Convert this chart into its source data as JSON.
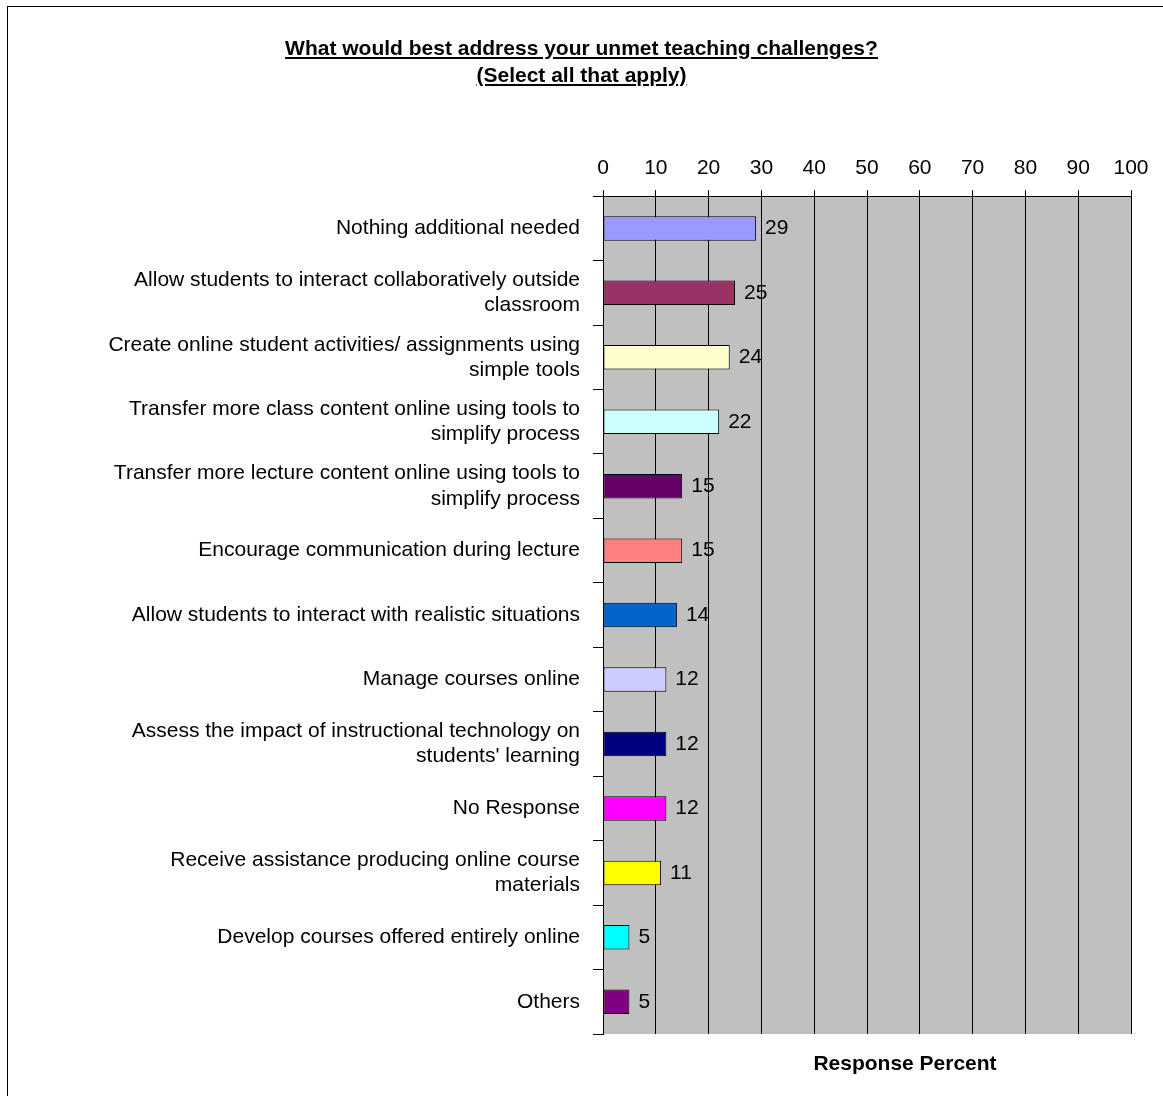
{
  "chart_data": {
    "type": "bar",
    "orientation": "horizontal",
    "title": "What would best address your unmet teaching challenges?",
    "subtitle": "(Select all that apply)",
    "xlabel": "Response Percent",
    "categories": [
      "Nothing additional needed",
      "Allow students to interact collaboratively outside classroom",
      "Create online student activities/ assignments using simple tools",
      "Transfer more class content online using tools to simplify process",
      "Transfer more lecture content online using tools to simplify process",
      "Encourage communication during lecture",
      "Allow students to interact with realistic situations",
      "Manage courses online",
      "Assess the impact of instructional technology on students' learning",
      "No Response",
      "Receive assistance producing online course materials",
      "Develop courses offered entirely online",
      "Others"
    ],
    "values": [
      29,
      25,
      24,
      22,
      15,
      15,
      14,
      12,
      12,
      12,
      11,
      5,
      5
    ],
    "colors": [
      "#9999ff",
      "#993366",
      "#ffffcc",
      "#ccffff",
      "#660066",
      "#ff8080",
      "#0066cc",
      "#ccccff",
      "#000080",
      "#ff00ff",
      "#ffff00",
      "#00ffff",
      "#800080"
    ],
    "xlim": [
      0,
      100
    ],
    "xticks": [
      0,
      10,
      20,
      30,
      40,
      50,
      60,
      70,
      80,
      90,
      100
    ],
    "grid": "x",
    "data_labels": true
  }
}
